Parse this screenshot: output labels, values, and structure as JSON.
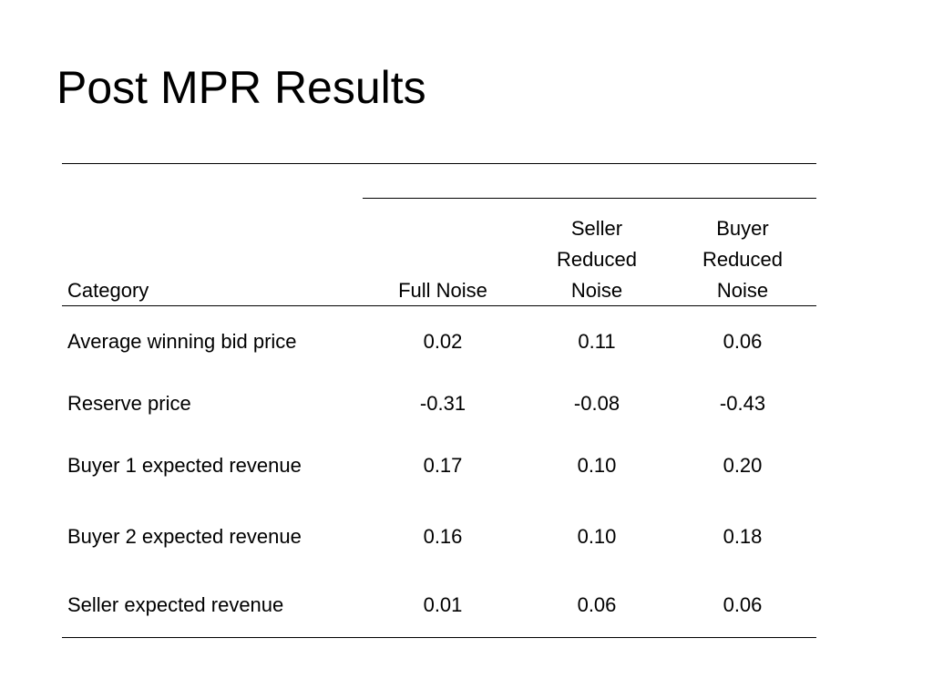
{
  "slide": {
    "title": "Post MPR Results"
  },
  "table": {
    "headers": {
      "category": "Category",
      "full_noise": "Full Noise",
      "seller_reduced_noise": [
        "Seller",
        "Reduced",
        "Noise"
      ],
      "buyer_reduced_noise": [
        "Buyer",
        "Reduced",
        "Noise"
      ]
    },
    "rows": [
      {
        "category": "Average winning bid price",
        "full_noise": "0.02",
        "seller_reduced_noise": "0.11",
        "buyer_reduced_noise": "0.06"
      },
      {
        "category": "Reserve price",
        "full_noise": "-0.31",
        "seller_reduced_noise": "-0.08",
        "buyer_reduced_noise": "-0.43"
      },
      {
        "category": "Buyer 1 expected revenue",
        "full_noise": "0.17",
        "seller_reduced_noise": "0.10",
        "buyer_reduced_noise": "0.20"
      },
      {
        "category": "Buyer 2 expected revenue",
        "full_noise": "0.16",
        "seller_reduced_noise": "0.10",
        "buyer_reduced_noise": "0.18"
      },
      {
        "category": "Seller expected revenue",
        "full_noise": "0.01",
        "seller_reduced_noise": "0.06",
        "buyer_reduced_noise": "0.06"
      }
    ]
  }
}
